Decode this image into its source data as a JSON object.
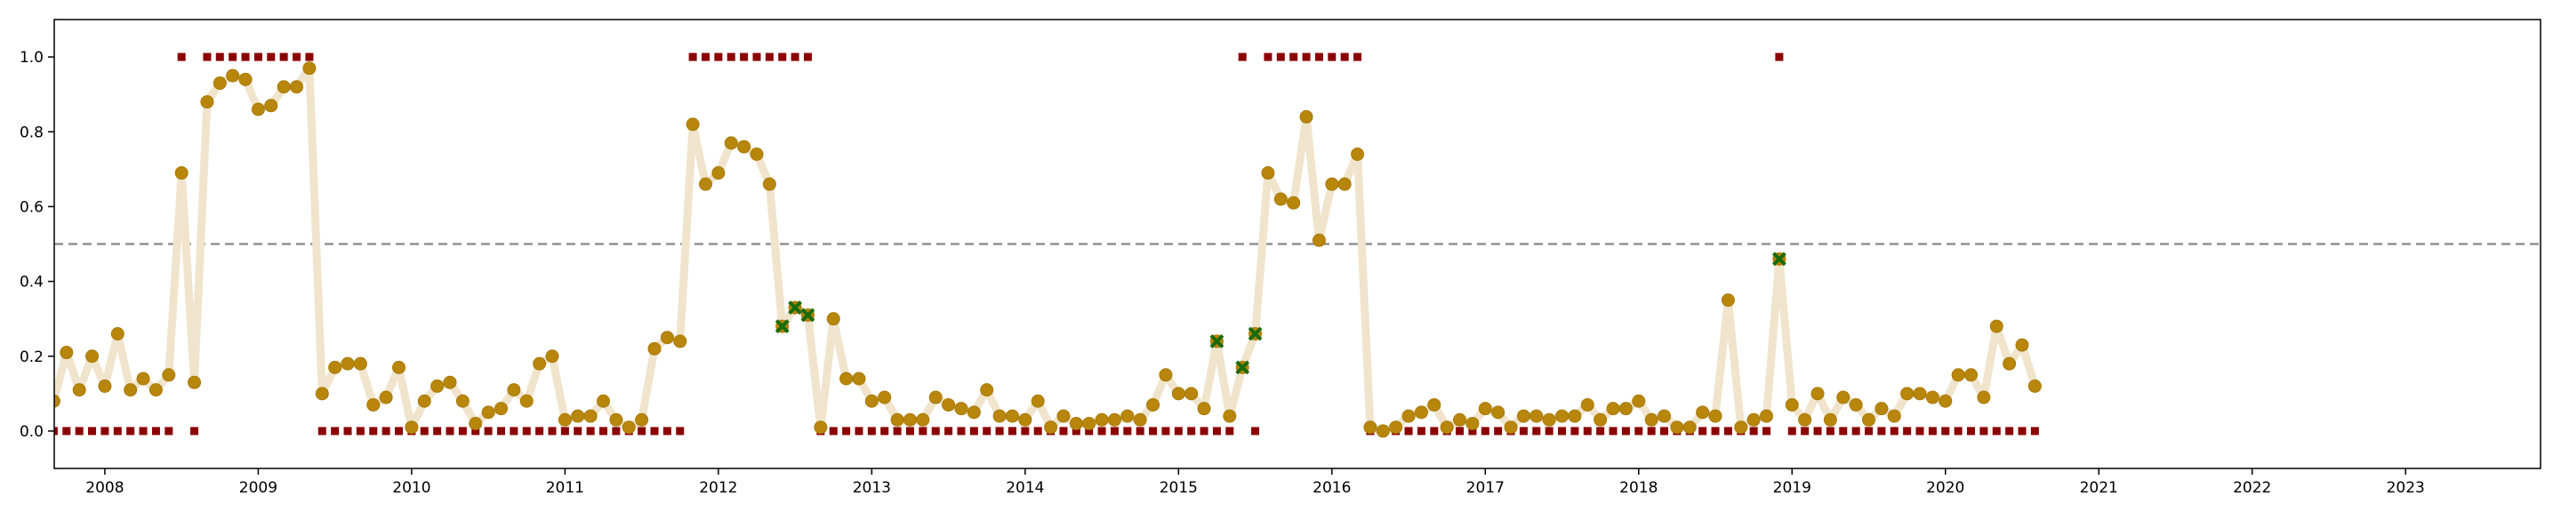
{
  "chart_data": {
    "type": "scatter",
    "title": "",
    "xlabel": "",
    "ylabel": "",
    "x_tick_labels": [
      "2008",
      "2009",
      "2010",
      "2011",
      "2012",
      "2013",
      "2014",
      "2015",
      "2016",
      "2017",
      "2018",
      "2019",
      "2020",
      "2021",
      "2022",
      "2023"
    ],
    "y_tick_labels": [
      "0.0",
      "0.2",
      "0.4",
      "0.6",
      "0.8",
      "1.0"
    ],
    "y_ticks": [
      0,
      0.2,
      0.4,
      0.6,
      0.8,
      1.0
    ],
    "x_ticks": [
      2008,
      2009,
      2010,
      2011,
      2012,
      2013,
      2014,
      2015,
      2016,
      2017,
      2018,
      2019,
      2020,
      2021,
      2022,
      2023
    ],
    "xlim": [
      2007.67,
      2023.88
    ],
    "ylim": [
      -0.1,
      1.1
    ],
    "grid": false,
    "legend": "none",
    "threshold": 0.5,
    "colors": {
      "line": "#f0e4cc",
      "points": "#b8860b",
      "points_edge": "#a87a08",
      "binary": "#8b0000",
      "misclassified": "#1a6b0a",
      "threshold": "#888888",
      "axes": "#000000"
    },
    "start": {
      "year": 2007,
      "month": 9
    },
    "probability": [
      0.08,
      0.21,
      0.11,
      0.2,
      0.12,
      0.26,
      0.11,
      0.14,
      0.11,
      0.15,
      0.69,
      0.13,
      0.88,
      0.93,
      0.95,
      0.94,
      0.86,
      0.87,
      0.92,
      0.92,
      0.97,
      0.1,
      0.17,
      0.18,
      0.18,
      0.07,
      0.09,
      0.17,
      0.01,
      0.08,
      0.12,
      0.13,
      0.08,
      0.02,
      0.05,
      0.06,
      0.11,
      0.08,
      0.18,
      0.2,
      0.03,
      0.04,
      0.04,
      0.08,
      0.03,
      0.01,
      0.03,
      0.22,
      0.25,
      0.24,
      0.82,
      0.66,
      0.69,
      0.77,
      0.76,
      0.74,
      0.66,
      0.28,
      0.33,
      0.31,
      0.01,
      0.3,
      0.14,
      0.14,
      0.08,
      0.09,
      0.03,
      0.03,
      0.03,
      0.09,
      0.07,
      0.06,
      0.05,
      0.11,
      0.04,
      0.04,
      0.03,
      0.08,
      0.01,
      0.04,
      0.02,
      0.02,
      0.03,
      0.03,
      0.04,
      0.03,
      0.07,
      0.15,
      0.1,
      0.1,
      0.06,
      0.24,
      0.04,
      0.17,
      0.26,
      0.69,
      0.62,
      0.61,
      0.84,
      0.51,
      0.66,
      0.66,
      0.74,
      0.01,
      0.0,
      0.01,
      0.04,
      0.05,
      0.07,
      0.01,
      0.03,
      0.02,
      0.06,
      0.05,
      0.01,
      0.04,
      0.04,
      0.03,
      0.04,
      0.04,
      0.07,
      0.03,
      0.06,
      0.06,
      0.08,
      0.03,
      0.04,
      0.01,
      0.01,
      0.05,
      0.04,
      0.35,
      0.01,
      0.03,
      0.04,
      0.46,
      0.07,
      0.03,
      0.1,
      0.03,
      0.09,
      0.07,
      0.03,
      0.06,
      0.04,
      0.1,
      0.1,
      0.09,
      0.08,
      0.15,
      0.15,
      0.09,
      0.28,
      0.18,
      0.23,
      0.12
    ],
    "recession": [
      0,
      0,
      0,
      0,
      0,
      0,
      0,
      0,
      0,
      0,
      1,
      0,
      1,
      1,
      1,
      1,
      1,
      1,
      1,
      1,
      1,
      0,
      0,
      0,
      0,
      0,
      0,
      0,
      0,
      0,
      0,
      0,
      0,
      0,
      0,
      0,
      0,
      0,
      0,
      0,
      0,
      0,
      0,
      0,
      0,
      0,
      0,
      0,
      0,
      0,
      1,
      1,
      1,
      1,
      1,
      1,
      1,
      1,
      1,
      1,
      0,
      0,
      0,
      0,
      0,
      0,
      0,
      0,
      0,
      0,
      0,
      0,
      0,
      0,
      0,
      0,
      0,
      0,
      0,
      0,
      0,
      0,
      0,
      0,
      0,
      0,
      0,
      0,
      0,
      0,
      0,
      0,
      0,
      1,
      0,
      1,
      1,
      1,
      1,
      1,
      1,
      1,
      1,
      0,
      0,
      0,
      0,
      0,
      0,
      0,
      0,
      0,
      0,
      0,
      0,
      0,
      0,
      0,
      0,
      0,
      0,
      0,
      0,
      0,
      0,
      0,
      0,
      0,
      0,
      0,
      0,
      0,
      0,
      0,
      0,
      1,
      0,
      0,
      0,
      0,
      0,
      0,
      0,
      0,
      0,
      0,
      0,
      0,
      0,
      0,
      0,
      0,
      0,
      0,
      0,
      0
    ],
    "misclassified": [
      {
        "x": "2012-06",
        "y": 0.28
      },
      {
        "x": "2012-07",
        "y": 0.33
      },
      {
        "x": "2012-08",
        "y": 0.31
      },
      {
        "x": "2015-04",
        "y": 0.24
      },
      {
        "x": "2015-06",
        "y": 0.17
      },
      {
        "x": "2015-07",
        "y": 0.26
      },
      {
        "x": "2018-12",
        "y": 0.46
      }
    ]
  }
}
